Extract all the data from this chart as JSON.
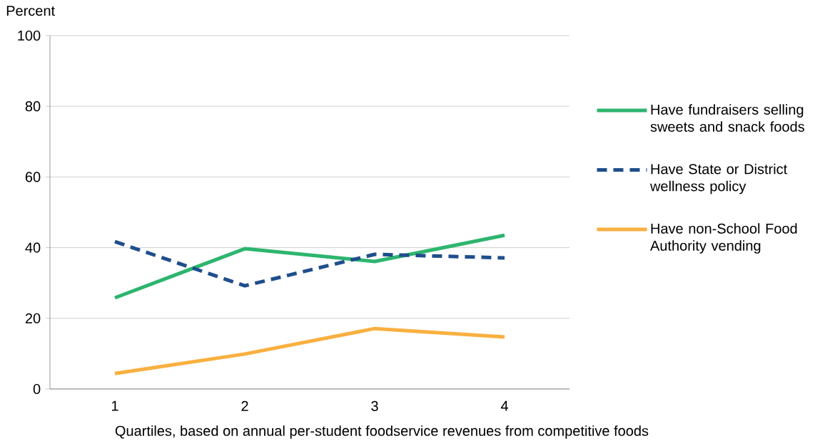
{
  "chart_data": {
    "type": "line",
    "ylabel": "Percent",
    "xlabel": "Quartiles, based on annual per-student foodservice revenues from competitive foods",
    "categories": [
      "1",
      "2",
      "3",
      "4"
    ],
    "ylim": [
      0,
      100
    ],
    "yticks": [
      0,
      20,
      40,
      60,
      80,
      100
    ],
    "grid": "y",
    "legend": "right",
    "series": [
      {
        "name": "Have fundraisers selling sweets and snack foods",
        "color": "#2db56e",
        "line_style": "solid",
        "values": [
          25.8,
          39.7,
          36.1,
          43.5
        ]
      },
      {
        "name": "Have State or District wellness policy",
        "color": "#1f4e8c",
        "line_style": "dashed",
        "values": [
          41.7,
          29.2,
          38.1,
          37.1
        ]
      },
      {
        "name": "Have non-School Food Authority vending",
        "color": "#f9b040",
        "line_style": "solid",
        "values": [
          4.4,
          9.9,
          17.1,
          14.7
        ]
      }
    ]
  }
}
